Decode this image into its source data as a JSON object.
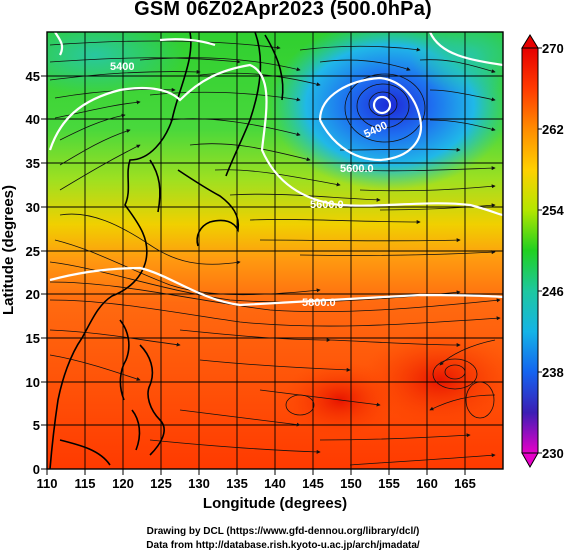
{
  "title": "GSM 06Z02Apr2023 (500.0hPa)",
  "x_axis": {
    "label": "Longitude (degrees)",
    "ticks": [
      "110",
      "115",
      "120",
      "125",
      "130",
      "135",
      "140",
      "145",
      "150",
      "155",
      "160",
      "165"
    ],
    "range": [
      110,
      170
    ]
  },
  "y_axis": {
    "label": "Latitude (degrees)",
    "ticks": [
      "0",
      "5",
      "10",
      "15",
      "20",
      "25",
      "30",
      "35",
      "40",
      "45"
    ],
    "range": [
      0,
      50
    ]
  },
  "colorbar": {
    "labels": [
      "270",
      "262",
      "254",
      "246",
      "238",
      "230"
    ],
    "values": [
      270,
      262,
      254,
      246,
      238,
      230
    ],
    "colors": [
      "#e60000",
      "#ff4500",
      "#ff8c00",
      "#ffd000",
      "#b4e600",
      "#20d020",
      "#1ec8a0",
      "#14b4e6",
      "#1464f0",
      "#1e1eb4",
      "#8c00c8",
      "#e600c8"
    ]
  },
  "contours": {
    "labels": [
      "5400",
      "5600.0",
      "5800.0",
      "5600.0",
      "5400"
    ]
  },
  "credits": {
    "line1": "Drawing by DCL (https://www.gfd-dennou.org/library/dcl/)",
    "line2": "Data from http://database.rish.kyoto-u.ac.jp/arch/jmadata/"
  }
}
